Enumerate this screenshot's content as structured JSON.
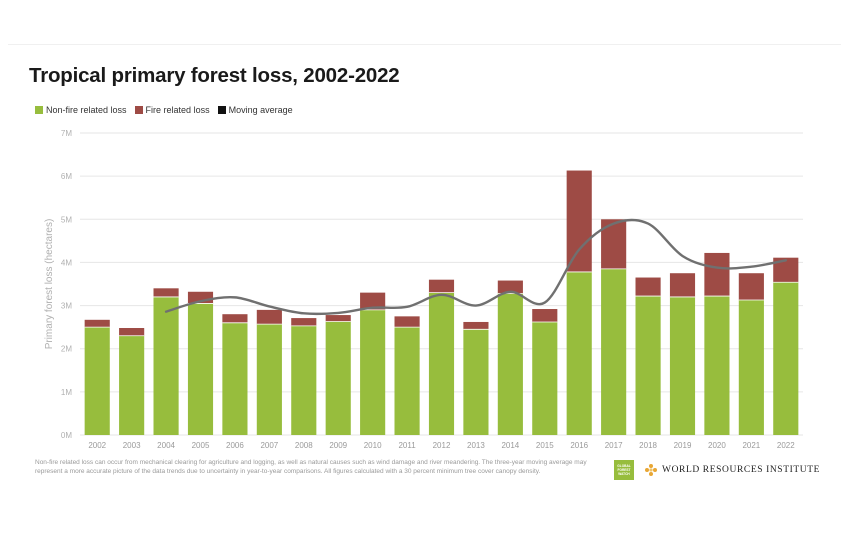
{
  "title": "Tropical primary forest loss, 2002-2022",
  "legend": [
    {
      "label": "Non-fire related loss",
      "color": "#97bd3d"
    },
    {
      "label": "Fire related loss",
      "color": "#9e4b45"
    },
    {
      "label": "Moving average",
      "color": "#111111"
    }
  ],
  "chart_data": {
    "type": "bar",
    "stacked": true,
    "categories": [
      "2002",
      "2003",
      "2004",
      "2005",
      "2006",
      "2007",
      "2008",
      "2009",
      "2010",
      "2011",
      "2012",
      "2013",
      "2014",
      "2015",
      "2016",
      "2017",
      "2018",
      "2019",
      "2020",
      "2021",
      "2022"
    ],
    "series": [
      {
        "name": "Non-fire related loss",
        "color": "#97bd3d",
        "values": [
          2.5,
          2.3,
          3.2,
          3.05,
          2.6,
          2.57,
          2.53,
          2.63,
          2.9,
          2.5,
          3.3,
          2.45,
          3.28,
          2.62,
          3.78,
          3.85,
          3.22,
          3.2,
          3.22,
          3.13,
          3.54
        ]
      },
      {
        "name": "Fire related loss",
        "color": "#9e4b45",
        "values": [
          0.17,
          0.18,
          0.2,
          0.27,
          0.2,
          0.33,
          0.18,
          0.15,
          0.4,
          0.25,
          0.3,
          0.17,
          0.3,
          0.3,
          2.35,
          1.15,
          0.43,
          0.55,
          1.0,
          0.62,
          0.57
        ]
      }
    ],
    "moving_average": {
      "name": "Moving average",
      "color": "#707070",
      "values": [
        null,
        null,
        2.86,
        3.1,
        3.19,
        2.98,
        2.82,
        2.83,
        2.95,
        2.97,
        3.25,
        3.0,
        3.32,
        3.07,
        4.3,
        4.9,
        4.9,
        4.15,
        3.88,
        3.9,
        4.05
      ]
    },
    "ylabel": "Primary forest loss (hectares)",
    "yticks": [
      "0M",
      "1M",
      "2M",
      "3M",
      "4M",
      "5M",
      "6M",
      "7M"
    ],
    "ylim": [
      0,
      7
    ],
    "grid": true,
    "legend_position": "top-left"
  },
  "footnote": "Non-fire related loss can occur from mechanical clearing for agriculture and logging, as well as natural causes such as wind damage and river meandering. The three-year moving average may represent a more accurate picture of the data trends due to uncertainty in year-to-year comparisons. All figures calculated with a 30 percent minimum tree cover canopy density.",
  "logos": {
    "gfw": "GLOBAL FOREST WATCH",
    "wri": "WORLD RESOURCES INSTITUTE"
  }
}
